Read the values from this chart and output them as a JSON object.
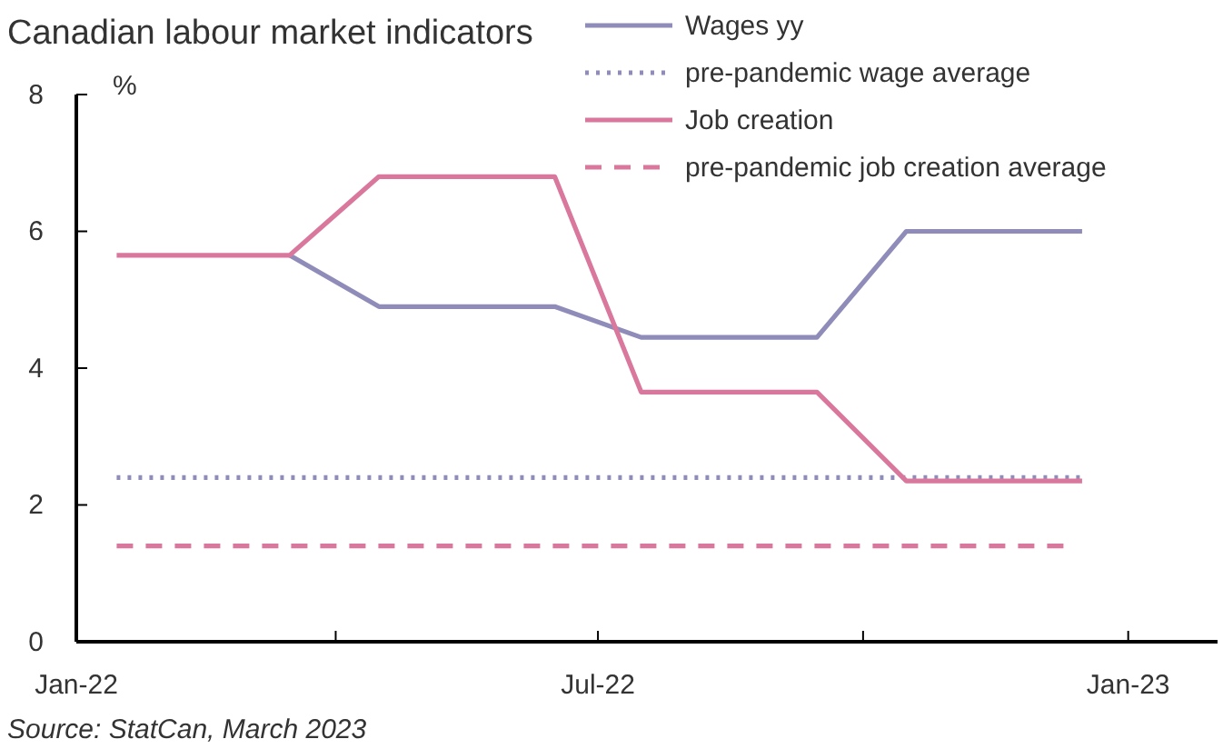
{
  "chart_data": {
    "type": "line",
    "title": "Canadian labour market indicators",
    "ylabel": "%",
    "annotations": [
      "Source: StatCan, March 2023"
    ],
    "xlim": [
      "2022-01-01",
      "2023-02-01"
    ],
    "xticks": [
      {
        "value": "2022-01-01",
        "label": "Jan-22"
      },
      {
        "value": "2022-04-01",
        "label": null
      },
      {
        "value": "2022-07-01",
        "label": "Jul-22"
      },
      {
        "value": "2022-10-01",
        "label": null
      },
      {
        "value": "2023-01-01",
        "label": "Jan-23"
      }
    ],
    "ylim": [
      0,
      8
    ],
    "yticks": [
      0,
      2,
      4,
      6,
      8
    ],
    "grid": false,
    "legend": "top right",
    "marker": "none",
    "series": [
      {
        "name": "Wages yy",
        "color": "#8f8cb9",
        "line_style": "solid",
        "x": [
          "2022-03-16",
          "2022-04-16",
          "2022-06-16",
          "2022-07-16",
          "2022-09-15",
          "2022-10-16",
          "2022-12-16"
        ],
        "values": [
          5.65,
          4.9,
          4.9,
          4.45,
          4.45,
          6,
          6
        ]
      },
      {
        "name": "pre-pandemic wage average",
        "color": "#8f8cb9",
        "line_style": "dotted",
        "x": [
          "2022-01-15",
          "2022-12-16"
        ],
        "values": [
          2.4,
          2.4
        ]
      },
      {
        "name": "Job creation",
        "color": "#d9789c",
        "line_style": "solid",
        "x": [
          "2022-01-15",
          "2022-03-16",
          "2022-04-16",
          "2022-06-16",
          "2022-07-16",
          "2022-09-15",
          "2022-10-16",
          "2022-12-16"
        ],
        "values": [
          5.65,
          5.65,
          6.8,
          6.8,
          3.65,
          3.65,
          2.35,
          2.35
        ]
      },
      {
        "name": "pre-pandemic job creation average",
        "color": "#d9789c",
        "line_style": "dashed",
        "x": [
          "2022-01-15",
          "2022-12-10"
        ],
        "values": [
          1.4,
          1.4
        ]
      }
    ]
  }
}
